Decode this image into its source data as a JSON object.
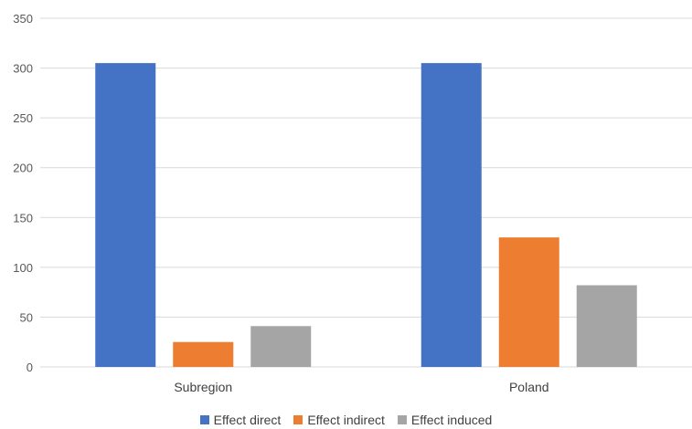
{
  "chart_data": {
    "type": "bar",
    "categories": [
      "Subregion",
      "Poland"
    ],
    "series": [
      {
        "name": "Effect direct",
        "color": "#4472C4",
        "values": [
          305,
          305
        ]
      },
      {
        "name": "Effect indirect",
        "color": "#ED7D31",
        "values": [
          25,
          130
        ]
      },
      {
        "name": "Effect induced",
        "color": "#A5A5A5",
        "values": [
          41,
          82
        ]
      }
    ],
    "title": "",
    "xlabel": "",
    "ylabel": "",
    "ylim": [
      0,
      350
    ],
    "yticks": [
      "0",
      "50",
      "100",
      "150",
      "200",
      "250",
      "300",
      "350"
    ],
    "grid": true,
    "legend_position": "bottom"
  }
}
